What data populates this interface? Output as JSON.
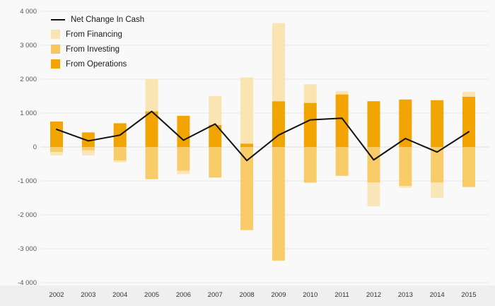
{
  "page": {
    "background": "#f9f9f9",
    "plot_band_color": "#efefef",
    "grid_color": "#e7e7e7",
    "zero_line_color": "#dedede",
    "axis_text_color": "#555555",
    "xaxis_text_color": "#333333"
  },
  "legend": {
    "items": [
      {
        "label": "Net Change In Cash",
        "type": "line",
        "color": "#111111"
      },
      {
        "label": "From Financing",
        "type": "box",
        "color": "#FAE4B1"
      },
      {
        "label": "From Investing",
        "type": "box",
        "color": "#F8C65A"
      },
      {
        "label": "From Operations",
        "type": "box",
        "color": "#F2A500"
      }
    ]
  },
  "chart_data": {
    "type": "bar",
    "subtype": "stacked-bar-with-line",
    "title": "",
    "xlabel": "",
    "ylabel": "",
    "categories": [
      "2002",
      "2003",
      "2004",
      "2005",
      "2006",
      "2007",
      "2008",
      "2009",
      "2010",
      "2011",
      "2012",
      "2013",
      "2014",
      "2015"
    ],
    "series": [
      {
        "name": "From Operations",
        "type": "bar",
        "color": "#F2A500",
        "values": [
          750,
          430,
          700,
          1050,
          920,
          650,
          100,
          1350,
          1300,
          1550,
          1350,
          1400,
          1380,
          1480
        ]
      },
      {
        "name": "From Investing",
        "type": "bar",
        "color": "#F8C65A",
        "values": [
          -150,
          -100,
          -400,
          -950,
          -700,
          -900,
          -2450,
          -3350,
          -1050,
          -850,
          -1050,
          -1150,
          -1050,
          -1180
        ]
      },
      {
        "name": "From Financing",
        "type": "bar",
        "color": "#FAE4B1",
        "values": [
          -100,
          -150,
          -50,
          950,
          -100,
          850,
          1950,
          2300,
          550,
          100,
          -700,
          -50,
          -450,
          150
        ]
      },
      {
        "name": "Net Change In Cash",
        "type": "line",
        "color": "#111111",
        "values": [
          520,
          180,
          350,
          1050,
          200,
          680,
          -400,
          350,
          800,
          850,
          -380,
          250,
          -150,
          450
        ]
      }
    ],
    "ylim": [
      -4000,
      4000
    ],
    "yticks": [
      4000,
      3000,
      2000,
      1000,
      0,
      -1000,
      -2000,
      -3000,
      -4000
    ],
    "ytick_labels": [
      "4 000",
      "3 000",
      "2 000",
      "1 000",
      "0",
      "-1 000",
      "-2 000",
      "-3 000",
      "-4 000"
    ],
    "grid": true,
    "legend_position": "top-left"
  }
}
